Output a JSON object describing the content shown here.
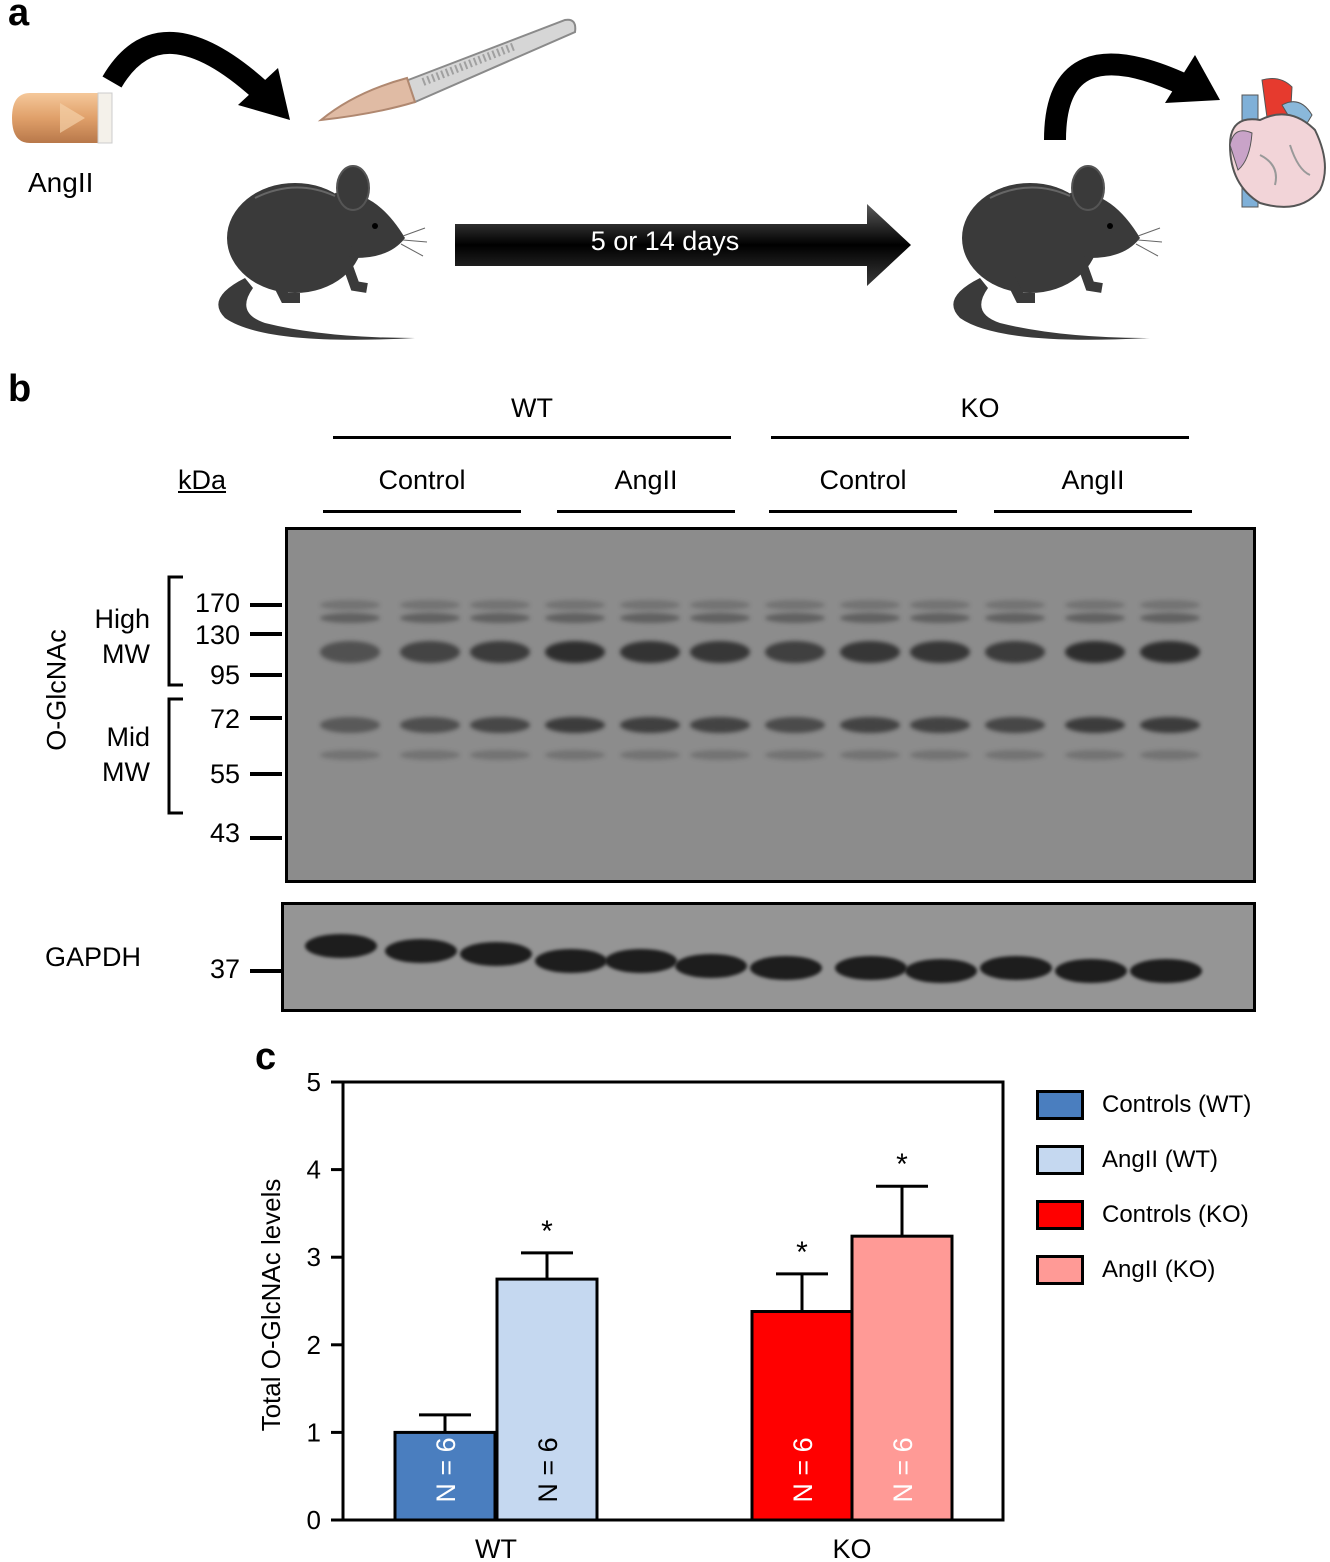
{
  "panel_a": {
    "label": "a",
    "drug_label": "AngII",
    "arrow_label": "5 or 14 days"
  },
  "panel_b": {
    "label": "b",
    "genotypes": [
      "WT",
      "KO"
    ],
    "treatments": [
      "Control",
      "AngII",
      "Control",
      "AngII"
    ],
    "kda_label": "kDa",
    "ylabel": "O-GlcNAc",
    "high_mw": [
      "High",
      "MW"
    ],
    "mid_mw": [
      "Mid",
      "MW"
    ],
    "markers": [
      "170",
      "130",
      "95",
      "72",
      "55",
      "43"
    ],
    "gapdh_label": "GAPDH",
    "gapdh_marker": "37"
  },
  "panel_c": {
    "label": "c"
  },
  "chart_data": {
    "type": "bar",
    "ylabel": "Total O-GlcNAc levels",
    "ylim": [
      0,
      5
    ],
    "yticks": [
      "0",
      "1",
      "2",
      "3",
      "4",
      "5"
    ],
    "groups": [
      "WT",
      "KO"
    ],
    "legend_position": "right",
    "series": [
      {
        "name": "Controls (WT)",
        "group": "WT",
        "value": 1.0,
        "error": 0.2,
        "n_label": "N = 6",
        "star": "",
        "color": "#4a7ebf",
        "text_color": "#ffffff"
      },
      {
        "name": "AngII (WT)",
        "group": "WT",
        "value": 2.75,
        "error": 0.3,
        "n_label": "N = 6",
        "star": "*",
        "color": "#c5d8f0",
        "text_color": "#000000"
      },
      {
        "name": "Controls (KO)",
        "group": "KO",
        "value": 2.38,
        "error": 0.43,
        "n_label": "N = 6",
        "star": "*",
        "color": "#ff0000",
        "text_color": "#ffffff"
      },
      {
        "name": "AngII (KO)",
        "group": "KO",
        "value": 3.24,
        "error": 0.57,
        "n_label": "N = 6",
        "star": "*",
        "color": "#ff9a96",
        "text_color": "#ffffff"
      }
    ]
  }
}
